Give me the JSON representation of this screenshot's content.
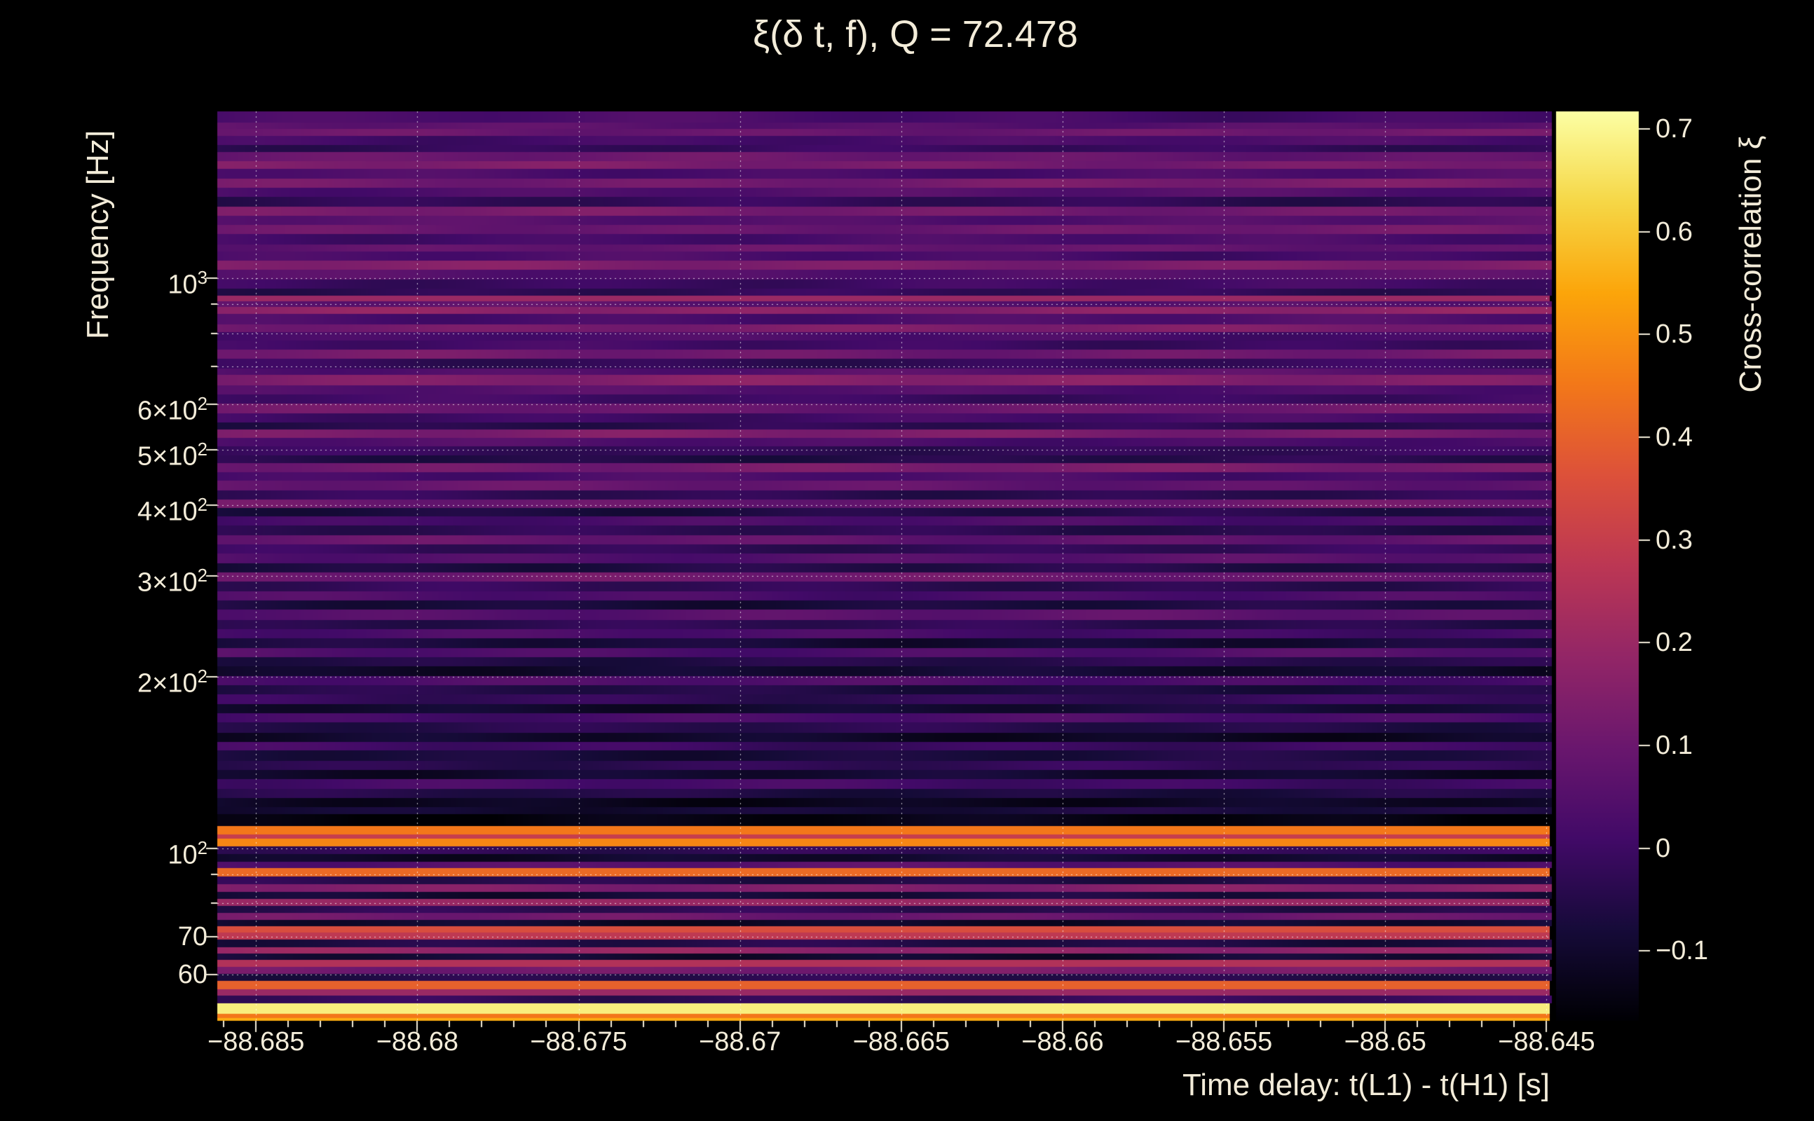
{
  "colors": {
    "background": "#000000",
    "text": "#f3ecd9",
    "grid": "#ffffff"
  },
  "chart_data": {
    "type": "heatmap",
    "title": "ξ(δ t, f), Q = 72.478",
    "q": 72.478,
    "xlabel": "Time delay: t(L1) - t(H1) [s]",
    "ylabel": "Frequency [Hz]",
    "colorbar_label": "Cross-correlation ξ",
    "colormap": "inferno",
    "x_range": [
      -88.6862,
      -88.6449
    ],
    "y_range_hz": [
      49.8,
      1960
    ],
    "y_scale": "log",
    "color_range": [
      -0.168,
      0.717
    ],
    "x_ticks": [
      {
        "value": -88.685,
        "label": "−88.685"
      },
      {
        "value": -88.68,
        "label": "−88.68"
      },
      {
        "value": -88.675,
        "label": "−88.675"
      },
      {
        "value": -88.67,
        "label": "−88.67"
      },
      {
        "value": -88.665,
        "label": "−88.665"
      },
      {
        "value": -88.66,
        "label": "−88.66"
      },
      {
        "value": -88.655,
        "label": "−88.655"
      },
      {
        "value": -88.65,
        "label": "−88.65"
      },
      {
        "value": -88.645,
        "label": "−88.645"
      }
    ],
    "y_ticks": [
      {
        "value": 1000,
        "base": "10",
        "exp": "3"
      },
      {
        "value": 600,
        "base": "6×10",
        "exp": "2"
      },
      {
        "value": 500,
        "base": "5×10",
        "exp": "2"
      },
      {
        "value": 400,
        "base": "4×10",
        "exp": "2"
      },
      {
        "value": 300,
        "base": "3×10",
        "exp": "2"
      },
      {
        "value": 200,
        "base": "2×10",
        "exp": "2"
      },
      {
        "value": 100,
        "base": "10",
        "exp": "2"
      },
      {
        "value": 70,
        "base": "70",
        "exp": ""
      },
      {
        "value": 60,
        "base": "60",
        "exp": ""
      }
    ],
    "y_minor_ticks": [
      900,
      800,
      700,
      90,
      80
    ],
    "colorbar_ticks": [
      {
        "value": 0.7,
        "label": "0.7"
      },
      {
        "value": 0.6,
        "label": "0.6"
      },
      {
        "value": 0.5,
        "label": "0.5"
      },
      {
        "value": 0.4,
        "label": "0.4"
      },
      {
        "value": 0.3,
        "label": "0.3"
      },
      {
        "value": 0.2,
        "label": "0.2"
      },
      {
        "value": 0.1,
        "label": "0.1"
      },
      {
        "value": 0,
        "label": "0"
      },
      {
        "value": -0.1,
        "label": "−0.1"
      }
    ],
    "bands_format": "each entry = [fraction from top of plot on the log-frequency axis, cross-correlation xi estimated from the colorbar]; xi is nearly constant along the time-delay axis (horizontal stripes)",
    "bands": [
      [
        0.0,
        0.02
      ],
      [
        0.012,
        0.06
      ],
      [
        0.019,
        0.1
      ],
      [
        0.027,
        0.02
      ],
      [
        0.037,
        -0.02
      ],
      [
        0.045,
        0.09
      ],
      [
        0.055,
        0.13
      ],
      [
        0.063,
        0.03
      ],
      [
        0.074,
        0.12
      ],
      [
        0.084,
        0.04
      ],
      [
        0.094,
        -0.03
      ],
      [
        0.105,
        0.12
      ],
      [
        0.115,
        0.05
      ],
      [
        0.125,
        0.1
      ],
      [
        0.135,
        0.02
      ],
      [
        0.146,
        0.08
      ],
      [
        0.154,
        0.02
      ],
      [
        0.164,
        0.14
      ],
      [
        0.174,
        0.05
      ],
      [
        0.185,
        0.0
      ],
      [
        0.195,
        -0.03
      ],
      [
        0.203,
        0.2
      ],
      [
        0.209,
        0.06
      ],
      [
        0.215,
        0.17
      ],
      [
        0.223,
        0.03
      ],
      [
        0.234,
        0.13
      ],
      [
        0.243,
        0.02
      ],
      [
        0.252,
        0.0
      ],
      [
        0.262,
        0.11
      ],
      [
        0.272,
        -0.02
      ],
      [
        0.283,
        0.05
      ],
      [
        0.29,
        0.15
      ],
      [
        0.301,
        0.04
      ],
      [
        0.311,
        0.0
      ],
      [
        0.321,
        0.1
      ],
      [
        0.332,
        0.01
      ],
      [
        0.342,
        -0.04
      ],
      [
        0.35,
        0.13
      ],
      [
        0.359,
        0.03
      ],
      [
        0.368,
        -0.02
      ],
      [
        0.378,
        -0.05
      ],
      [
        0.387,
        0.12
      ],
      [
        0.397,
        0.02
      ],
      [
        0.406,
        0.08
      ],
      [
        0.417,
        -0.03
      ],
      [
        0.427,
        0.1
      ],
      [
        0.436,
        -0.06
      ],
      [
        0.445,
        0.02
      ],
      [
        0.455,
        -0.04
      ],
      [
        0.466,
        0.08
      ],
      [
        0.476,
        -0.02
      ],
      [
        0.486,
        0.05
      ],
      [
        0.497,
        -0.06
      ],
      [
        0.507,
        0.1
      ],
      [
        0.517,
        -0.03
      ],
      [
        0.528,
        0.03
      ],
      [
        0.538,
        -0.07
      ],
      [
        0.548,
        0.06
      ],
      [
        0.559,
        -0.04
      ],
      [
        0.569,
        0.02
      ],
      [
        0.579,
        -0.08
      ],
      [
        0.59,
        0.04
      ],
      [
        0.6,
        -0.05
      ],
      [
        0.61,
        -0.1
      ],
      [
        0.621,
        0.03
      ],
      [
        0.631,
        -0.06
      ],
      [
        0.641,
        -0.02
      ],
      [
        0.652,
        -0.09
      ],
      [
        0.662,
        0.02
      ],
      [
        0.672,
        -0.05
      ],
      [
        0.683,
        -0.11
      ],
      [
        0.693,
        0.0
      ],
      [
        0.703,
        -0.07
      ],
      [
        0.714,
        -0.03
      ],
      [
        0.724,
        -0.1
      ],
      [
        0.734,
        0.01
      ],
      [
        0.745,
        -0.06
      ],
      [
        0.755,
        -0.12
      ],
      [
        0.765,
        -0.08
      ],
      [
        0.773,
        -0.15
      ],
      [
        0.786,
        0.45
      ],
      [
        0.795,
        0.3
      ],
      [
        0.8,
        0.48
      ],
      [
        0.808,
        -0.02
      ],
      [
        0.817,
        -0.1
      ],
      [
        0.825,
        0.05
      ],
      [
        0.832,
        0.42
      ],
      [
        0.841,
        -0.05
      ],
      [
        0.85,
        0.15
      ],
      [
        0.858,
        -0.08
      ],
      [
        0.866,
        0.2
      ],
      [
        0.874,
        -0.04
      ],
      [
        0.881,
        0.1
      ],
      [
        0.889,
        -0.1
      ],
      [
        0.896,
        0.35
      ],
      [
        0.903,
        0.28
      ],
      [
        0.911,
        -0.06
      ],
      [
        0.919,
        0.18
      ],
      [
        0.926,
        -0.09
      ],
      [
        0.933,
        0.25
      ],
      [
        0.941,
        0.12
      ],
      [
        0.948,
        -0.05
      ],
      [
        0.956,
        0.4
      ],
      [
        0.965,
        0.2
      ],
      [
        0.972,
        -0.02
      ],
      [
        0.981,
        0.68
      ],
      [
        0.992,
        0.45
      ],
      [
        0.997,
        0.55
      ]
    ]
  }
}
